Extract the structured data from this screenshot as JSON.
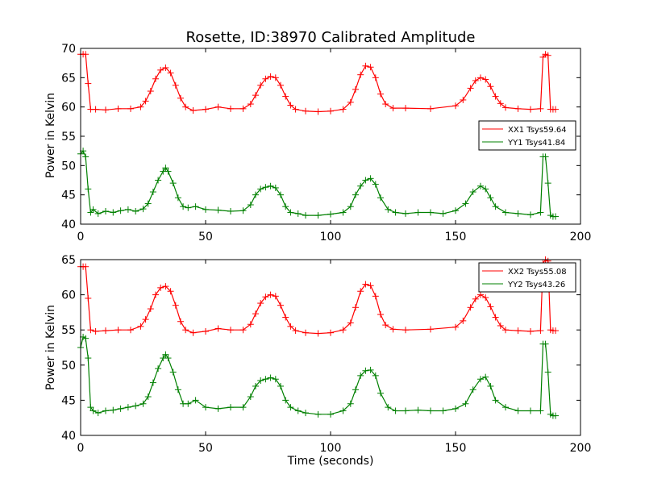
{
  "colors": {
    "xx": "#ff0000",
    "yy": "#008000",
    "axis": "#000000",
    "background": "#ffffff"
  },
  "chart_data": [
    {
      "type": "line",
      "title": "Rosette, ID:38970 Calibrated Amplitude",
      "xlabel": "",
      "ylabel": "Power in Kelvin",
      "xlim": [
        0,
        200
      ],
      "ylim": [
        40,
        70
      ],
      "xticks": [
        "0",
        "50",
        "100",
        "150",
        "200"
      ],
      "yticks": [
        "40",
        "45",
        "50",
        "55",
        "60",
        "65",
        "70"
      ],
      "legend_position": "right",
      "marker": "+",
      "series": [
        {
          "name": "XX1 Tsys59.64",
          "color": "#ff0000",
          "x": [
            0,
            1,
            2,
            3,
            4,
            6,
            10,
            15,
            20,
            24,
            26,
            28,
            30,
            32,
            34,
            36,
            38,
            40,
            42,
            45,
            50,
            55,
            60,
            65,
            68,
            70,
            72,
            74,
            76,
            78,
            80,
            82,
            84,
            86,
            90,
            95,
            100,
            105,
            108,
            110,
            112,
            114,
            116,
            118,
            120,
            122,
            125,
            130,
            140,
            150,
            153,
            156,
            158,
            160,
            162,
            164,
            166,
            168,
            170,
            175,
            180,
            184,
            185,
            186,
            187,
            188,
            189,
            190
          ],
          "values": [
            69.0,
            69.0,
            69.0,
            64.0,
            59.6,
            59.6,
            59.5,
            59.7,
            59.7,
            60.0,
            61.0,
            62.7,
            64.8,
            66.3,
            66.7,
            65.8,
            63.7,
            61.5,
            60.0,
            59.4,
            59.6,
            60.0,
            59.7,
            59.7,
            60.5,
            62.0,
            63.7,
            64.8,
            65.2,
            65.0,
            63.7,
            61.8,
            60.3,
            59.6,
            59.3,
            59.2,
            59.3,
            59.6,
            60.8,
            63.0,
            65.5,
            67.0,
            66.8,
            65.0,
            62.2,
            60.5,
            59.8,
            59.8,
            59.7,
            60.2,
            61.2,
            63.2,
            64.5,
            65.0,
            64.7,
            63.5,
            61.8,
            60.6,
            59.9,
            59.7,
            59.6,
            59.7,
            68.5,
            69.0,
            68.8,
            59.6,
            59.6,
            59.6
          ]
        },
        {
          "name": "YY1 Tsys41.84",
          "color": "#008000",
          "x": [
            0,
            1,
            2,
            3,
            4,
            5,
            7,
            10,
            13,
            16,
            19,
            22,
            25,
            27,
            29,
            31,
            33,
            34,
            35,
            37,
            39,
            41,
            43,
            46,
            50,
            55,
            60,
            65,
            68,
            70,
            72,
            74,
            76,
            78,
            80,
            82,
            84,
            87,
            90,
            95,
            100,
            105,
            108,
            110,
            112,
            114,
            116,
            118,
            120,
            123,
            126,
            130,
            135,
            140,
            145,
            150,
            154,
            157,
            160,
            162,
            164,
            166,
            170,
            175,
            180,
            184,
            185,
            186,
            187,
            188,
            189,
            190
          ],
          "values": [
            52.0,
            52.5,
            51.5,
            46.0,
            42.0,
            42.5,
            41.8,
            42.2,
            42.0,
            42.3,
            42.5,
            42.2,
            42.6,
            43.5,
            45.5,
            47.5,
            49.0,
            49.6,
            49.0,
            47.0,
            44.5,
            43.0,
            42.8,
            43.0,
            42.5,
            42.4,
            42.2,
            42.3,
            43.3,
            45.0,
            46.0,
            46.3,
            46.5,
            46.2,
            45.0,
            43.0,
            42.0,
            41.8,
            41.5,
            41.5,
            41.7,
            42.0,
            43.0,
            45.0,
            46.5,
            47.5,
            47.8,
            46.8,
            44.5,
            42.5,
            42.0,
            41.8,
            42.0,
            42.0,
            41.8,
            42.3,
            43.5,
            45.5,
            46.5,
            46.0,
            44.5,
            43.0,
            42.0,
            41.8,
            41.6,
            42.0,
            51.5,
            51.5,
            47.0,
            41.5,
            41.3,
            41.3
          ]
        }
      ]
    },
    {
      "type": "line",
      "title": "",
      "xlabel": "Time (seconds)",
      "ylabel": "Power in Kelvin",
      "xlim": [
        0,
        200
      ],
      "ylim": [
        40,
        65
      ],
      "xticks": [
        "0",
        "50",
        "100",
        "150",
        "200"
      ],
      "yticks": [
        "40",
        "45",
        "50",
        "55",
        "60",
        "65"
      ],
      "legend_position": "top-right",
      "marker": "+",
      "series": [
        {
          "name": "XX2 Tsys55.08",
          "color": "#ff0000",
          "x": [
            0,
            1,
            2,
            3,
            4,
            6,
            10,
            15,
            20,
            24,
            26,
            28,
            30,
            32,
            34,
            36,
            38,
            40,
            42,
            45,
            50,
            55,
            60,
            65,
            68,
            70,
            72,
            74,
            76,
            78,
            80,
            82,
            84,
            86,
            90,
            95,
            100,
            105,
            108,
            110,
            112,
            114,
            116,
            118,
            120,
            122,
            125,
            130,
            140,
            150,
            153,
            156,
            158,
            160,
            162,
            164,
            166,
            168,
            170,
            175,
            180,
            184,
            185,
            186,
            187,
            188,
            189,
            190
          ],
          "values": [
            64.0,
            64.0,
            64.0,
            59.5,
            55.0,
            54.8,
            54.9,
            55.0,
            55.0,
            55.5,
            56.5,
            58.0,
            60.0,
            61.0,
            61.2,
            60.5,
            58.5,
            56.2,
            55.0,
            54.6,
            54.8,
            55.2,
            55.0,
            55.0,
            55.8,
            57.3,
            58.8,
            59.7,
            60.0,
            59.8,
            58.5,
            56.8,
            55.5,
            54.9,
            54.6,
            54.5,
            54.6,
            55.0,
            56.0,
            58.2,
            60.5,
            61.5,
            61.3,
            59.8,
            57.2,
            55.7,
            55.1,
            55.0,
            55.1,
            55.4,
            56.3,
            58.2,
            59.4,
            60.0,
            59.6,
            58.3,
            56.8,
            55.6,
            55.0,
            54.9,
            54.8,
            54.9,
            64.5,
            65.0,
            64.8,
            55.0,
            54.9,
            54.9
          ]
        },
        {
          "name": "YY2 Tsys43.26",
          "color": "#008000",
          "x": [
            0,
            1,
            2,
            3,
            4,
            5,
            7,
            10,
            13,
            16,
            19,
            22,
            25,
            27,
            29,
            31,
            33,
            34,
            35,
            37,
            39,
            41,
            43,
            46,
            50,
            55,
            60,
            65,
            68,
            70,
            72,
            74,
            76,
            78,
            80,
            82,
            84,
            87,
            90,
            95,
            100,
            105,
            108,
            110,
            112,
            114,
            116,
            118,
            120,
            123,
            126,
            130,
            135,
            140,
            145,
            150,
            154,
            157,
            160,
            162,
            164,
            166,
            170,
            175,
            180,
            184,
            185,
            186,
            187,
            188,
            189,
            190
          ],
          "values": [
            52.5,
            54.0,
            53.8,
            51.0,
            44.0,
            43.5,
            43.2,
            43.5,
            43.6,
            43.8,
            44.0,
            44.2,
            44.5,
            45.5,
            47.5,
            49.5,
            51.0,
            51.5,
            51.0,
            49.0,
            46.5,
            44.5,
            44.5,
            45.0,
            44.0,
            43.8,
            44.0,
            44.0,
            45.5,
            47.0,
            47.8,
            48.0,
            48.2,
            48.0,
            47.0,
            45.0,
            44.0,
            43.5,
            43.2,
            43.0,
            43.0,
            43.5,
            44.5,
            46.5,
            48.5,
            49.2,
            49.3,
            48.5,
            46.0,
            44.0,
            43.5,
            43.5,
            43.6,
            43.5,
            43.5,
            43.8,
            44.5,
            46.5,
            48.0,
            48.3,
            47.0,
            45.0,
            44.0,
            43.5,
            43.5,
            43.5,
            53.0,
            53.0,
            49.0,
            43.0,
            42.8,
            42.8
          ]
        }
      ]
    }
  ]
}
